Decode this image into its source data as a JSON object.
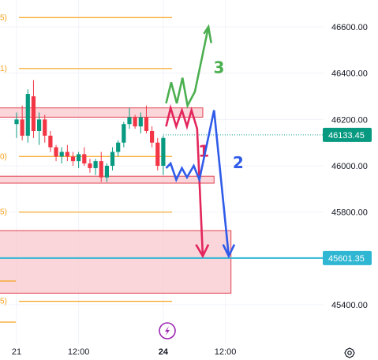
{
  "colors": {
    "up": "#089981",
    "down": "#f23645",
    "fib": "#f7a21b",
    "zone_fill": "#f8c8ce",
    "zone_stroke": "#e0414f",
    "target_line": "#2eb6d3",
    "scenario_1": "#e3265b",
    "scenario_2": "#2f5bea",
    "scenario_3": "#4caf50",
    "last_price_bg": "#089981",
    "target_bg": "#2eb6d3"
  },
  "icons": {
    "event_icon": "lightning-icon",
    "settings_icon": "gear-icon"
  },
  "chart_data": {
    "type": "candlestick",
    "title": "",
    "xlabel": "",
    "ylabel": "",
    "ylim": [
      45220,
      46860
    ],
    "y_ticks": [
      "46600.00",
      "46400.00",
      "46200.00",
      "46000.00",
      "45800.00",
      "45400.00"
    ],
    "y_tick_values": [
      46600,
      46400,
      46200,
      46000,
      45800,
      45400
    ],
    "x_ticks": [
      {
        "label": "21",
        "bar": 0,
        "bold": false
      },
      {
        "label": "12:00",
        "bar": 11,
        "bold": false
      },
      {
        "label": "24",
        "bar": 26,
        "bold": true
      },
      {
        "label": "12:00",
        "bar": 37,
        "bold": false
      }
    ],
    "last_price": {
      "label": "46133.45",
      "value": 46133.45
    },
    "target": {
      "label": "45601.35",
      "value": 45601.35
    },
    "fib_levels": [
      46640,
      46420,
      46040,
      45800,
      45415
    ],
    "fib_label_glyphs": [
      "5)",
      "1)",
      "0)",
      "5)",
      "5)"
    ],
    "zones": [
      {
        "name": "resistance",
        "low": 46210,
        "high": 46250,
        "from_bar": 0,
        "to_bar": 33
      },
      {
        "name": "support",
        "low": 45925,
        "high": 45955,
        "from_bar": 0,
        "to_bar": 35
      },
      {
        "name": "target-zone",
        "low": 45450,
        "high": 45720,
        "from_bar": 0,
        "to_bar": 38
      }
    ],
    "candles": [
      [
        46180,
        46230,
        46120,
        46200
      ],
      [
        46200,
        46260,
        46110,
        46130
      ],
      [
        46130,
        46330,
        46100,
        46310
      ],
      [
        46300,
        46370,
        46120,
        46150
      ],
      [
        46150,
        46230,
        46090,
        46200
      ],
      [
        46200,
        46220,
        46100,
        46130
      ],
      [
        46130,
        46150,
        46060,
        46080
      ],
      [
        46080,
        46090,
        46020,
        46040
      ],
      [
        46040,
        46080,
        46010,
        46060
      ],
      [
        46060,
        46090,
        46020,
        46040
      ],
      [
        46040,
        46060,
        46000,
        46020
      ],
      [
        46020,
        46060,
        45990,
        46050
      ],
      [
        46050,
        46080,
        46000,
        46010
      ],
      [
        46010,
        46030,
        45970,
        45990
      ],
      [
        45990,
        46030,
        45960,
        46020
      ],
      [
        46020,
        46060,
        45930,
        45950
      ],
      [
        45950,
        46010,
        45930,
        46000
      ],
      [
        46000,
        46080,
        45980,
        46060
      ],
      [
        46060,
        46110,
        46040,
        46100
      ],
      [
        46100,
        46190,
        46080,
        46180
      ],
      [
        46180,
        46250,
        46160,
        46210
      ],
      [
        46210,
        46220,
        46160,
        46170
      ],
      [
        46170,
        46230,
        46140,
        46210
      ],
      [
        46210,
        46260,
        46140,
        46150
      ],
      [
        46150,
        46170,
        46080,
        46100
      ],
      [
        46100,
        46120,
        45980,
        46000
      ],
      [
        46000,
        46130,
        45960,
        46120
      ]
    ],
    "scenarios": [
      {
        "name": "1",
        "color_key": "scenario_1",
        "points": [
          [
            26.5,
            46170
          ],
          [
            27.3,
            46250
          ],
          [
            28.3,
            46170
          ],
          [
            29.3,
            46240
          ],
          [
            30.2,
            46170
          ],
          [
            31.0,
            46240
          ],
          [
            32.0,
            46160
          ],
          [
            33.0,
            45610
          ]
        ],
        "arrow": [
          [
            31.8,
            45660
          ],
          [
            33.0,
            45610
          ],
          [
            34.0,
            45660
          ]
        ],
        "label": "1",
        "label_at": [
          32.2,
          46040
        ]
      },
      {
        "name": "2",
        "color_key": "scenario_2",
        "points": [
          [
            26.5,
            45990
          ],
          [
            27.3,
            46010
          ],
          [
            28.3,
            45940
          ],
          [
            29.3,
            45990
          ],
          [
            30.2,
            45950
          ],
          [
            31.4,
            46000
          ],
          [
            32.4,
            45940
          ],
          [
            35.0,
            46240
          ],
          [
            37.6,
            45610
          ]
        ],
        "arrow": [
          [
            36.6,
            45660
          ],
          [
            37.6,
            45610
          ],
          [
            38.6,
            45660
          ]
        ],
        "label": "2",
        "label_at": [
          38.3,
          45990
        ]
      },
      {
        "name": "3",
        "color_key": "scenario_3",
        "points": [
          [
            26.5,
            46270
          ],
          [
            27.4,
            46360
          ],
          [
            28.4,
            46270
          ],
          [
            29.4,
            46380
          ],
          [
            30.3,
            46260
          ],
          [
            31.6,
            46320
          ],
          [
            34.0,
            46600
          ]
        ],
        "arrow": [
          [
            33.2,
            46570
          ],
          [
            34.0,
            46600
          ],
          [
            34.5,
            46530
          ]
        ],
        "label": "3",
        "label_at": [
          34.9,
          46400
        ]
      }
    ]
  }
}
